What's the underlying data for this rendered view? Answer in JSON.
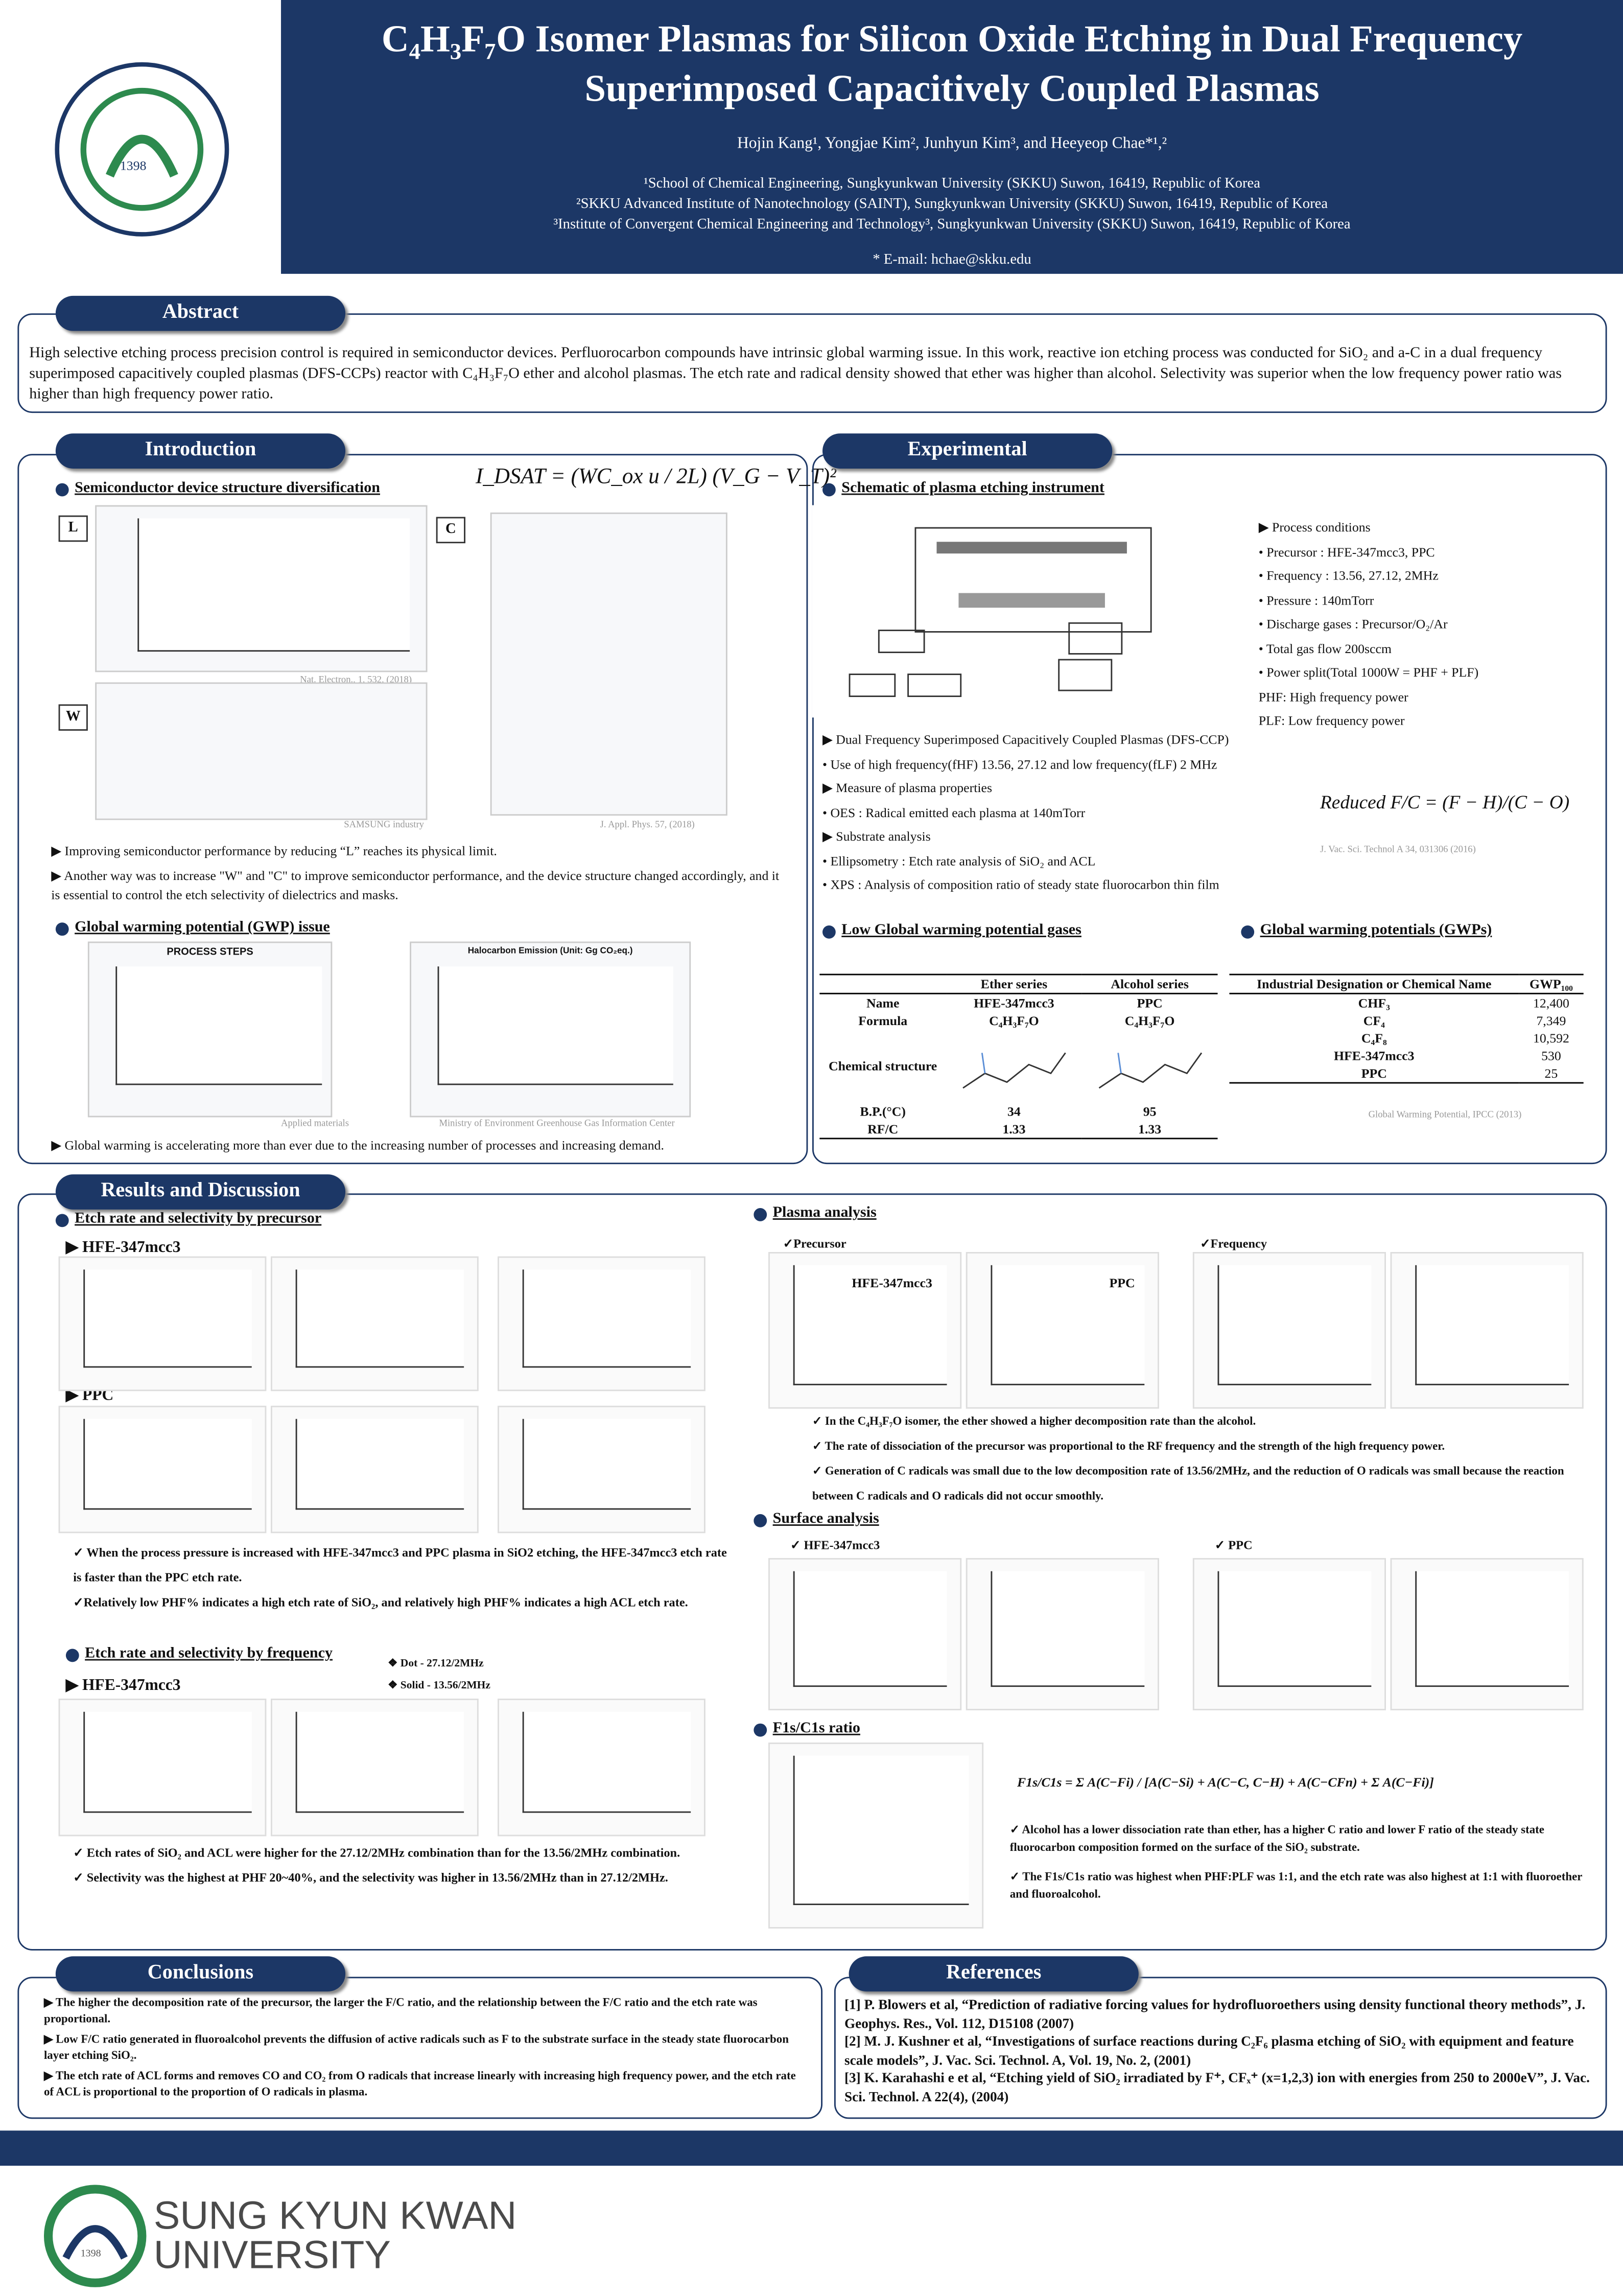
{
  "header": {
    "title_line1": "C₄H₃F₇O Isomer Plasmas for Silicon Oxide Etching in Dual Frequency",
    "title_line2": "Superimposed Capacitively Coupled Plasmas",
    "authors": "Hojin Kang¹, Yongjae Kim², Junhyun Kim³, and Heeyeop Chae*¹,²",
    "affiliations": [
      "¹School of Chemical Engineering, Sungkyunkwan University (SKKU) Suwon, 16419, Republic of Korea",
      "²SKKU Advanced Institute of Nanotechnology (SAINT), Sungkyunkwan University (SKKU) Suwon, 16419, Republic of Korea",
      "³Institute of Convergent Chemical Engineering and Technology³, Sungkyunkwan University (SKKU) Suwon, 16419, Republic of Korea"
    ],
    "email": "* E-mail: hchae@skku.edu",
    "logo_year": "1398"
  },
  "abstract": {
    "heading": "Abstract",
    "text": "High selective etching process precision control is required in semiconductor devices. Perfluorocarbon compounds have intrinsic global warming issue. In this work, reactive ion etching process was conducted for SiO₂ and a-C in a dual frequency superimposed capacitively coupled plasmas (DFS-CCPs) reactor with C₄H₃F₇O ether and alcohol plasmas. The etch rate and radical density showed that ether was higher than alcohol. Selectivity was superior when the low frequency power ratio was higher than high frequency power ratio."
  },
  "introduction": {
    "heading": "Introduction",
    "sub1": "Semiconductor device structure diversification",
    "equation": "I_DSAT = (WC_ox u / 2L) (V_G − V_T)²",
    "tags": [
      "L",
      "C",
      "W"
    ],
    "captions": [
      "Nat. Electron., 1, 532, (2018)",
      "SAMSUNG industry",
      "J. Appl. Phys. 57, (2018)"
    ],
    "bullets1": [
      "▶ Improving semiconductor performance by reducing “L” reaches its physical limit.",
      "▶ Another way was to increase \"W\" and \"C\" to improve semiconductor performance, and the device structure changed accordingly, and it is essential to control the etch selectivity of dielectrics and masks."
    ],
    "sub2": "Global warming potential (GWP) issue",
    "chart_titles": [
      "PROCESS STEPS",
      "Halocarbon Emission (Unit: Gg CO₂eq.)"
    ],
    "captions2": [
      "Applied materials",
      "Ministry of Environment Greenhouse Gas Information Center"
    ],
    "bullets2": [
      "▶ Global warming is accelerating more than ever due to the increasing number of processes and increasing demand."
    ]
  },
  "experimental": {
    "heading": "Experimental",
    "sub1": "Schematic of plasma etching instrument",
    "conditions": [
      "▶ Process conditions",
      "•  Precursor : HFE-347mcc3, PPC",
      "•  Frequency : 13.56, 27.12, 2MHz",
      "•  Pressure : 140mTorr",
      "•  Discharge gases : Precursor/O₂/Ar",
      "•  Total gas flow 200sccm",
      "•  Power split(Total 1000W = PHF + PLF)",
      "    PHF: High frequency power",
      "    PLF: Low frequency power"
    ],
    "bullets": [
      "▶ Dual Frequency Superimposed Capacitively Coupled Plasmas (DFS-CCP)",
      "•  Use of  high frequency(fHF) 13.56, 27.12 and low frequency(fLF) 2 MHz",
      "▶ Measure of plasma properties",
      "•  OES : Radical emitted each plasma at 140mTorr",
      "▶ Substrate analysis",
      "•  Ellipsometry : Etch rate analysis of SiO₂ and ACL",
      "•  XPS : Analysis of composition ratio of steady state fluorocarbon thin film"
    ],
    "equation": "Reduced F/C = (F − H)/(C − O)",
    "citation": "J. Vac. Sci. Technol A 34, 031306 (2016)",
    "sub2": "Low Global warming potential gases",
    "table1": {
      "columns": [
        "Ether series",
        "Alcohol series"
      ],
      "rows": [
        [
          "Name",
          "HFE-347mcc3",
          "PPC"
        ],
        [
          "Formula",
          "C₄H₃F₇O",
          "C₄H₃F₇O"
        ]
      ],
      "structure_label": "Chemical structure",
      "rows2": [
        [
          "B.P.(°C)",
          "34",
          "95"
        ],
        [
          "RF/C",
          "1.33",
          "1.33"
        ]
      ]
    },
    "sub3": "Global warming potentials (GWPs)",
    "table2": {
      "columns": [
        "Industrial Designation or Chemical Name",
        "GWP₁₀₀"
      ],
      "rows": [
        [
          "CHF₃",
          "12,400"
        ],
        [
          "CF₄",
          "7,349"
        ],
        [
          "C₄F₈",
          "10,592"
        ],
        [
          "HFE-347mcc3",
          "530"
        ],
        [
          "PPC",
          "25"
        ]
      ]
    },
    "caption": "Global Warming Potential, IPCC (2013)"
  },
  "results": {
    "heading": "Results and Discussion",
    "sub1": "Etch rate and selectivity by precursor",
    "gas1": "▶ HFE-347mcc3",
    "gas2": "▶ PPC",
    "bullets1": [
      "✓ When the process pressure is increased with HFE-347mcc3 and PPC plasma in SiO2 etching, the HFE-347mcc3 etch rate is faster than the PPC etch rate.",
      "✓Relatively low PHF% indicates a high etch rate of SiO₂, and relatively high PHF% indicates a high ACL etch rate."
    ],
    "sub2": "Etch rate and selectivity by frequency",
    "legend": [
      "❖  Dot - 27.12/2MHz",
      "❖  Solid - 13.56/2MHz"
    ],
    "gas3": "▶ HFE-347mcc3",
    "bullets2": [
      "✓ Etch rates of SiO₂ and ACL were higher for the 27.12/2MHz combination than for the 13.56/2MHz combination.",
      "✓ Selectivity was the highest at PHF 20~40%, and the selectivity was higher in 13.56/2MHz than in 27.12/2MHz."
    ],
    "sub3": "Plasma analysis",
    "plasma_labels": [
      "✓Precursor",
      "✓Frequency"
    ],
    "plasma_gases": [
      "HFE-347mcc3",
      "PPC"
    ],
    "bullets3": [
      "✓ In the C₄H₃F₇O isomer, the ether showed a higher decomposition rate than the alcohol.",
      "✓ The rate of dissociation of the precursor was proportional to the RF frequency and the strength of the high frequency power.",
      "✓ Generation of C radicals was small due to the low decomposition rate of 13.56/2MHz, and the reduction of O radicals was small because the reaction between C radicals and O radicals did not occur smoothly."
    ],
    "sub4": "Surface analysis",
    "surface_labels": [
      "✓  HFE-347mcc3",
      "✓  PPC"
    ],
    "sub5": "F1s/C1s ratio",
    "equation": "F1s/C1s = Σ A(C−Fi) / [A(C−Si) + A(C−C, C−H) + A(C−CFn) + Σ A(C−Fi)]",
    "bullets4": [
      "✓ Alcohol has a lower dissociation rate than ether, has a higher C ratio and lower F ratio of the steady state fluorocarbon composition formed on the surface of the SiO₂ substrate.",
      "✓ The F1s/C1s ratio was highest when PHF:PLF was 1:1, and the etch rate was also highest at 1:1 with fluoroether and fluoroalcohol."
    ]
  },
  "conclusions": {
    "heading": "Conclusions",
    "items": [
      "▶ The higher the decomposition rate of the precursor, the larger the F/C ratio, and the relationship between the F/C ratio and the etch rate was proportional.",
      "▶ Low F/C ratio generated in fluoroalcohol prevents the diffusion of active radicals such as F to the substrate surface in the steady state fluorocarbon layer etching SiO₂.",
      "▶ The etch rate of ACL forms and removes CO and CO₂ from O radicals that increase linearly with increasing high frequency power, and the etch rate of ACL is proportional to the proportion of O radicals in plasma."
    ]
  },
  "references": {
    "heading": "References",
    "items": [
      "[1] P. Blowers et al, “Prediction of radiative forcing values for hydrofluoroethers using density functional theory methods”, J. Geophys. Res., Vol. 112, D15108 (2007)",
      "[2] M. J. Kushner et al, “Investigations of surface reactions during C₂F₆ plasma etching of SiO₂ with equipment and feature scale models”, J. Vac. Sci. Technol. A, Vol. 19, No. 2, (2001)",
      "[3] K. Karahashi e et al, “Etching yield of SiO₂ irradiated by F⁺, CFₓ⁺ (x=1,2,3) ion with energies from 250 to 2000eV”, J. Vac. Sci. Technol. A 22(4), (2004)"
    ]
  },
  "footer": {
    "logo_line1": "SUNG KYUN KWAN",
    "logo_line2": "UNIVERSITY",
    "logo_year": "1398"
  }
}
